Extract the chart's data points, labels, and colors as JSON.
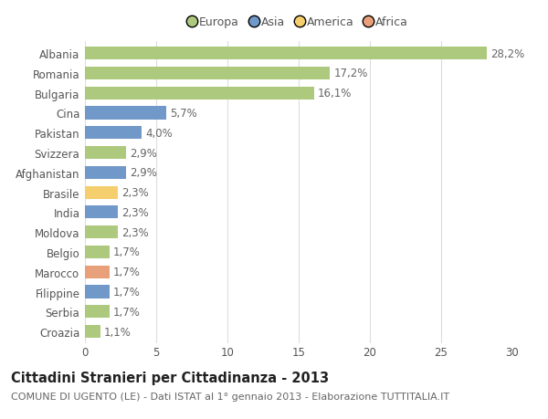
{
  "categories": [
    "Albania",
    "Romania",
    "Bulgaria",
    "Cina",
    "Pakistan",
    "Svizzera",
    "Afghanistan",
    "Brasile",
    "India",
    "Moldova",
    "Belgio",
    "Marocco",
    "Filippine",
    "Serbia",
    "Croazia"
  ],
  "values": [
    28.2,
    17.2,
    16.1,
    5.7,
    4.0,
    2.9,
    2.9,
    2.3,
    2.3,
    2.3,
    1.7,
    1.7,
    1.7,
    1.7,
    1.1
  ],
  "labels": [
    "28,2%",
    "17,2%",
    "16,1%",
    "5,7%",
    "4,0%",
    "2,9%",
    "2,9%",
    "2,3%",
    "2,3%",
    "2,3%",
    "1,7%",
    "1,7%",
    "1,7%",
    "1,7%",
    "1,1%"
  ],
  "continents": [
    "Europa",
    "Europa",
    "Europa",
    "Asia",
    "Asia",
    "Europa",
    "Asia",
    "America",
    "Asia",
    "Europa",
    "Europa",
    "Africa",
    "Asia",
    "Europa",
    "Europa"
  ],
  "continent_colors": {
    "Europa": "#adc97e",
    "Asia": "#7098c8",
    "America": "#f5ce6e",
    "Africa": "#e8a07a"
  },
  "legend_order": [
    "Europa",
    "Asia",
    "America",
    "Africa"
  ],
  "title": "Cittadini Stranieri per Cittadinanza - 2013",
  "subtitle": "COMUNE DI UGENTO (LE) - Dati ISTAT al 1° gennaio 2013 - Elaborazione TUTTITALIA.IT",
  "xlim": [
    0,
    30
  ],
  "xticks": [
    0,
    5,
    10,
    15,
    20,
    25,
    30
  ],
  "background_color": "#ffffff",
  "grid_color": "#dddddd",
  "bar_height": 0.65,
  "title_fontsize": 10.5,
  "subtitle_fontsize": 8,
  "tick_fontsize": 8.5,
  "label_fontsize": 8.5
}
